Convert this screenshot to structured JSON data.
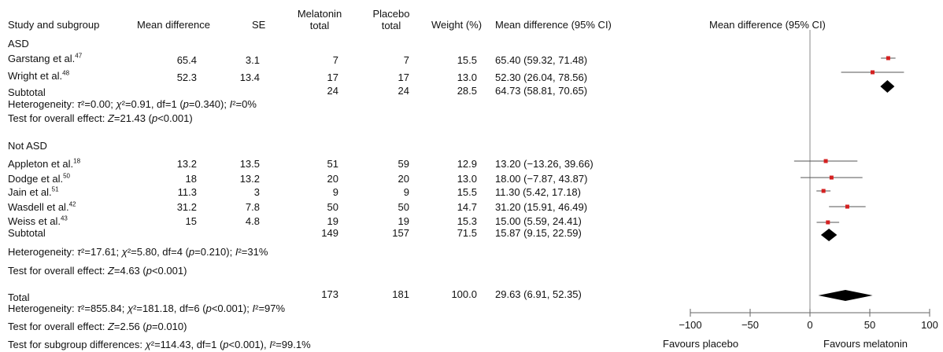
{
  "chart_data": {
    "type": "forest",
    "xlabel": "Mean difference (95% CI)",
    "xlim": [
      -100,
      100
    ],
    "ticks": [
      -100,
      -50,
      0,
      50,
      100
    ],
    "favours_left": "Favours placebo",
    "favours_right": "Favours melatonin",
    "columns": [
      "Study and subgroup",
      "Mean difference",
      "SE",
      "Melatonin total",
      "Placebo total",
      "Weight (%)",
      "Mean difference (95% CI)"
    ],
    "subgroups": [
      {
        "name": "ASD",
        "studies": [
          {
            "study": "Garstang et al.",
            "ref": "47",
            "md": "65.4",
            "se": "3.1",
            "mel": "7",
            "pla": "7",
            "weight": "15.5",
            "ci": "65.40 (59.32, 71.48)",
            "est": 65.4,
            "lo": 59.32,
            "hi": 71.48
          },
          {
            "study": "Wright et al.",
            "ref": "48",
            "md": "52.3",
            "se": "13.4",
            "mel": "17",
            "pla": "17",
            "weight": "13.0",
            "ci": "52.30 (26.04, 78.56)",
            "est": 52.3,
            "lo": 26.04,
            "hi": 78.56
          }
        ],
        "subtotal": {
          "label": "Subtotal",
          "mel": "24",
          "pla": "24",
          "weight": "28.5",
          "ci": "64.73 (58.81, 70.65)",
          "est": 64.73,
          "lo": 58.81,
          "hi": 70.65
        },
        "heterogeneity": "Heterogeneity: τ²=0.00;  χ²=0.91, df=1 (p=0.340); I²=0%",
        "overall": "Test for overall effect: Z=21.43 (p<0.001)"
      },
      {
        "name": "Not ASD",
        "studies": [
          {
            "study": "Appleton et al.",
            "ref": "18",
            "md": "13.2",
            "se": "13.5",
            "mel": "51",
            "pla": "59",
            "weight": "12.9",
            "ci": "13.20 (−13.26, 39.66)",
            "est": 13.2,
            "lo": -13.26,
            "hi": 39.66
          },
          {
            "study": "Dodge et al.",
            "ref": "50",
            "md": "18",
            "se": "13.2",
            "mel": "20",
            "pla": "20",
            "weight": "13.0",
            "ci": "18.00 (−7.87, 43.87)",
            "est": 18.0,
            "lo": -7.87,
            "hi": 43.87
          },
          {
            "study": "Jain et al.",
            "ref": "51",
            "md": "11.3",
            "se": "3",
            "mel": "9",
            "pla": "9",
            "weight": "15.5",
            "ci": "11.30 (5.42, 17.18)",
            "est": 11.3,
            "lo": 5.42,
            "hi": 17.18
          },
          {
            "study": "Wasdell et al.",
            "ref": "42",
            "md": "31.2",
            "se": "7.8",
            "mel": "50",
            "pla": "50",
            "weight": "14.7",
            "ci": "31.20 (15.91, 46.49)",
            "est": 31.2,
            "lo": 15.91,
            "hi": 46.49
          },
          {
            "study": "Weiss et al.",
            "ref": "43",
            "md": "15",
            "se": "4.8",
            "mel": "19",
            "pla": "19",
            "weight": "15.3",
            "ci": "15.00 (5.59, 24.41)",
            "est": 15.0,
            "lo": 5.59,
            "hi": 24.41
          }
        ],
        "subtotal": {
          "label": "Subtotal",
          "mel": "149",
          "pla": "157",
          "weight": "71.5",
          "ci": "15.87 (9.15, 22.59)",
          "est": 15.87,
          "lo": 9.15,
          "hi": 22.59
        },
        "heterogeneity": "Heterogeneity: τ²=17.61;  χ²=5.80, df=4 (p=0.210); I²=31%",
        "overall": "Test for overall effect: Z=4.63 (p<0.001)"
      }
    ],
    "total": {
      "label": "Total",
      "mel": "173",
      "pla": "181",
      "weight": "100.0",
      "ci": "29.63 (6.91, 52.35)",
      "est": 29.63,
      "lo": 6.91,
      "hi": 52.35
    },
    "total_heterogeneity": "Heterogeneity: τ²=855.84;  χ²=181.18, df=6 (p<0.001); I²=97%",
    "total_overall": "Test for overall effect: Z=2.56 (p=0.010)",
    "subgroup_diff": "Test for subgroup differences: χ²=114.43, df=1 (p<0.001), I²=99.1%",
    "colors": {
      "point": "#d42020",
      "line": "#555555",
      "diamond": "#000000"
    }
  }
}
